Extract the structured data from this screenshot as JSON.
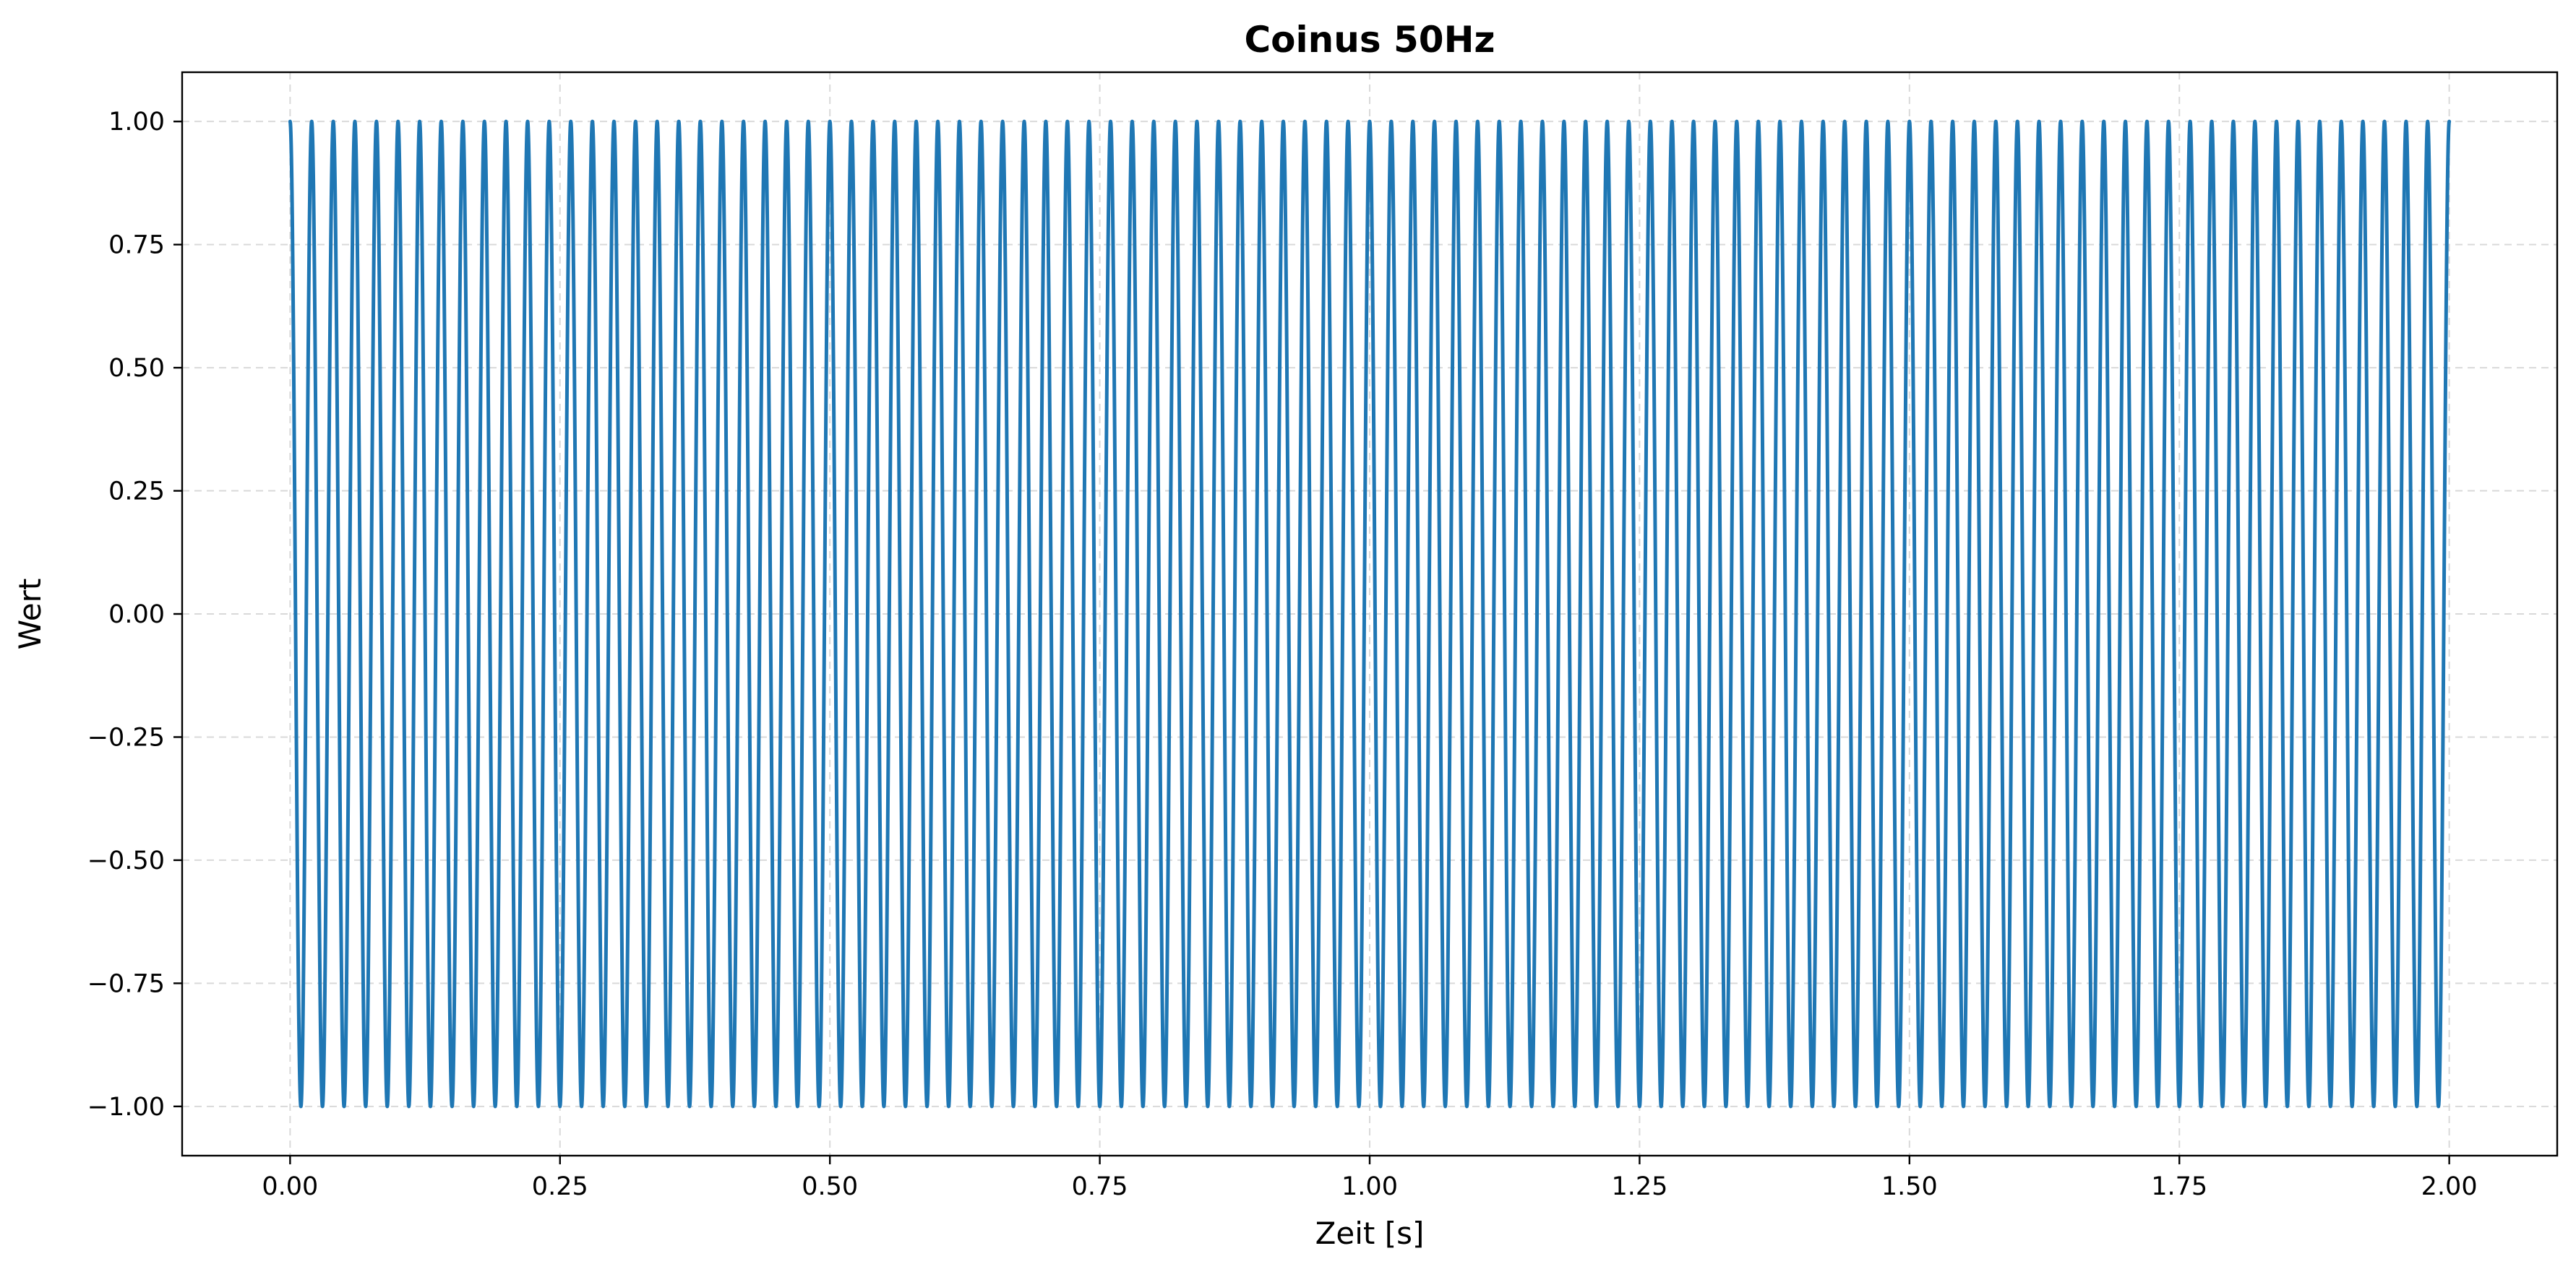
{
  "chart_data": {
    "type": "line",
    "title": "Coinus 50Hz",
    "xlabel": "Zeit [s]",
    "ylabel": "Wert",
    "xlim": [
      -0.1,
      2.1
    ],
    "ylim": [
      -1.1,
      1.1
    ],
    "x_ticks": [
      0.0,
      0.25,
      0.5,
      0.75,
      1.0,
      1.25,
      1.5,
      1.75,
      2.0
    ],
    "x_tick_labels": [
      "0.00",
      "0.25",
      "0.50",
      "0.75",
      "1.00",
      "1.25",
      "1.50",
      "1.75",
      "2.00"
    ],
    "y_ticks": [
      -1.0,
      -0.75,
      -0.5,
      -0.25,
      0.0,
      0.25,
      0.5,
      0.75,
      1.0
    ],
    "y_tick_labels": [
      "−1.00",
      "−0.75",
      "−0.50",
      "−0.25",
      "0.00",
      "0.25",
      "0.50",
      "0.75",
      "1.00"
    ],
    "grid": true,
    "series": [
      {
        "function": "cos(2*pi*f*t)",
        "frequency_hz": 50,
        "amplitude": 1.0,
        "t_start": 0.0,
        "t_end": 2.0,
        "color": "#1f77b4"
      }
    ]
  }
}
